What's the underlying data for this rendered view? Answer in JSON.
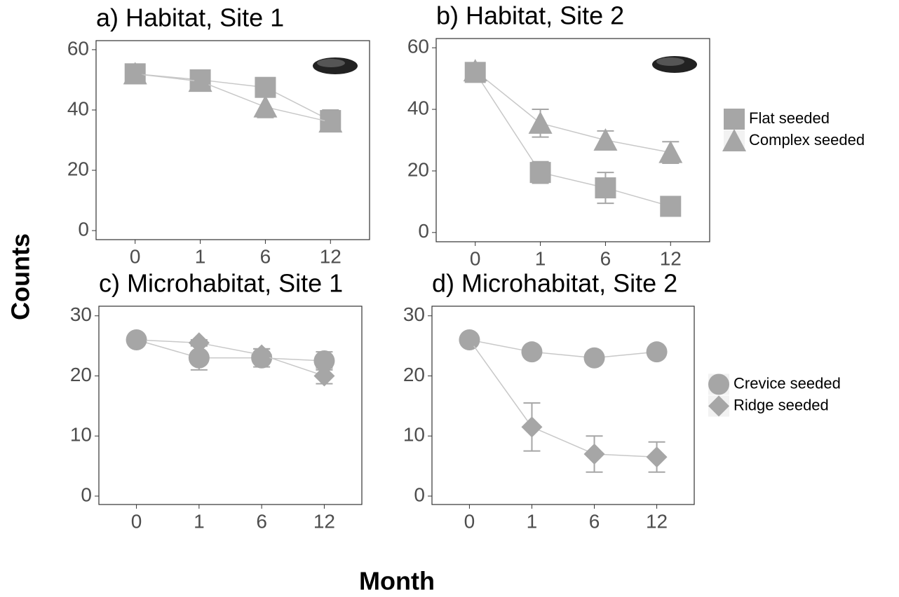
{
  "y_label": "Counts",
  "x_label": "Month",
  "chart_data": [
    {
      "type": "line",
      "title": "a) Habitat, Site 1",
      "categories": [
        "0",
        "1",
        "6",
        "12"
      ],
      "series": [
        {
          "color": "#a6a6a6",
          "marker": "square",
          "values": [
            52,
            50,
            47.5,
            36.5
          ],
          "errors": [
            0.5,
            1,
            2,
            3.5
          ]
        },
        {
          "color": "#a6a6a6",
          "marker": "triangle",
          "values": [
            52,
            49.5,
            41,
            36
          ],
          "errors": [
            0.5,
            1,
            3.5,
            3
          ]
        }
      ],
      "ylim": [
        -3,
        63
      ],
      "yticks": [
        0,
        20,
        40,
        60
      ]
    },
    {
      "type": "line",
      "title": "b) Habitat, Site 2",
      "categories": [
        "0",
        "1",
        "6",
        "12"
      ],
      "series": [
        {
          "name": "Flat seeded",
          "color": "#a6a6a6",
          "marker": "square",
          "values": [
            52,
            19.5,
            14.5,
            8.5
          ],
          "errors": [
            0.5,
            3.5,
            5,
            1.5
          ]
        },
        {
          "name": "Complex seeded",
          "color": "#a6a6a6",
          "marker": "triangle",
          "values": [
            52.5,
            35.5,
            30,
            26
          ],
          "errors": [
            0.5,
            4.5,
            3,
            3.5
          ]
        }
      ],
      "ylim": [
        -3,
        63
      ],
      "yticks": [
        0,
        20,
        40,
        60
      ],
      "legend": "right"
    },
    {
      "type": "line",
      "title": "c) Microhabitat, Site 1",
      "categories": [
        "0",
        "1",
        "6",
        "12"
      ],
      "series": [
        {
          "color": "#a6a6a6",
          "marker": "circle",
          "values": [
            26,
            23,
            23,
            22.5
          ],
          "errors": [
            0.3,
            2,
            1.5,
            1.5
          ]
        },
        {
          "color": "#a6a6a6",
          "marker": "diamond",
          "values": [
            26,
            25.5,
            23.5,
            20
          ],
          "errors": [
            0.3,
            0.5,
            1,
            1.3
          ]
        }
      ],
      "ylim": [
        -1.4,
        31.6
      ],
      "yticks": [
        0,
        10,
        20,
        30
      ]
    },
    {
      "type": "line",
      "title": "d) Microhabitat, Site 2",
      "categories": [
        "0",
        "1",
        "6",
        "12"
      ],
      "series": [
        {
          "name": "Crevice seeded",
          "color": "#a6a6a6",
          "marker": "circle",
          "values": [
            26,
            24,
            23,
            24
          ],
          "errors": [
            0.3,
            0.5,
            0.5,
            0.5
          ]
        },
        {
          "name": "Ridge seeded",
          "color": "#a6a6a6",
          "marker": "diamond",
          "values": [
            26,
            11.5,
            7,
            6.5
          ],
          "errors": [
            0.3,
            4,
            3,
            2.5
          ]
        }
      ],
      "ylim": [
        -1.4,
        31.6
      ],
      "yticks": [
        0,
        10,
        20,
        30
      ],
      "legend": "right"
    }
  ]
}
